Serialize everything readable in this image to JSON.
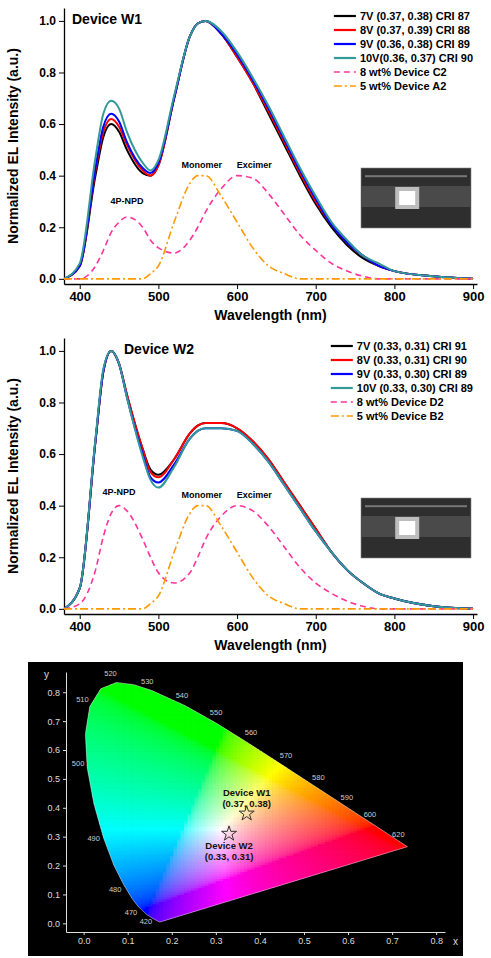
{
  "chart_data": [
    {
      "type": "line",
      "title": "Device W1",
      "xlabel": "Wavelength (nm)",
      "ylabel": "Normalized EL Intensity (a.u.)",
      "xlim": [
        380,
        905
      ],
      "ylim": [
        -0.02,
        1.05
      ],
      "xticks": [
        400,
        500,
        600,
        700,
        800,
        900
      ],
      "yticks": [
        {
          "value": 0,
          "label": "0.0"
        },
        0.2,
        0.4,
        0.6,
        0.8,
        {
          "value": 1,
          "label": "1.0"
        }
      ],
      "legend": "upper right",
      "x": [
        380,
        400,
        420,
        430,
        440,
        450,
        460,
        480,
        490,
        500,
        520,
        540,
        550,
        560,
        580,
        600,
        620,
        640,
        660,
        680,
        700,
        720,
        740,
        760,
        780,
        800,
        850,
        900
      ],
      "series": [
        {
          "name": "7V (0.37, 0.38) CRI 87",
          "color": "#000000",
          "line_style": "solid",
          "values": [
            0,
            0.05,
            0.4,
            0.55,
            0.6,
            0.57,
            0.5,
            0.41,
            0.4,
            0.44,
            0.7,
            0.94,
            0.99,
            1.0,
            0.95,
            0.86,
            0.76,
            0.64,
            0.52,
            0.4,
            0.29,
            0.2,
            0.13,
            0.08,
            0.05,
            0.03,
            0.01,
            0
          ]
        },
        {
          "name": "8V (0.37, 0.39) CRI 88",
          "color": "#ff0000",
          "line_style": "solid",
          "values": [
            0,
            0.05,
            0.42,
            0.57,
            0.62,
            0.59,
            0.52,
            0.42,
            0.4,
            0.44,
            0.7,
            0.94,
            0.99,
            1.0,
            0.95,
            0.86,
            0.76,
            0.65,
            0.53,
            0.41,
            0.3,
            0.21,
            0.14,
            0.09,
            0.05,
            0.03,
            0.01,
            0
          ]
        },
        {
          "name": "9V (0.36, 0.38) CRI 89",
          "color": "#0000ff",
          "line_style": "solid",
          "values": [
            0,
            0.05,
            0.43,
            0.59,
            0.64,
            0.61,
            0.53,
            0.43,
            0.41,
            0.45,
            0.7,
            0.94,
            0.99,
            1.0,
            0.95,
            0.87,
            0.77,
            0.66,
            0.54,
            0.42,
            0.31,
            0.21,
            0.14,
            0.09,
            0.05,
            0.03,
            0.01,
            0
          ]
        },
        {
          "name": "10V(0.36, 0.37) CRI 90",
          "color": "#339999",
          "line_style": "solid",
          "values": [
            0,
            0.06,
            0.47,
            0.64,
            0.69,
            0.66,
            0.57,
            0.45,
            0.42,
            0.46,
            0.71,
            0.94,
            0.99,
            1.0,
            0.96,
            0.88,
            0.78,
            0.67,
            0.55,
            0.43,
            0.32,
            0.22,
            0.15,
            0.09,
            0.06,
            0.03,
            0.01,
            0
          ]
        },
        {
          "name": "8 wt% Device C2",
          "color": "#ff3399",
          "line_style": "dash",
          "values": [
            0,
            0,
            0.05,
            0.11,
            0.18,
            0.22,
            0.24,
            0.2,
            0.15,
            0.12,
            0.1,
            0.15,
            0.2,
            0.26,
            0.35,
            0.4,
            0.39,
            0.33,
            0.25,
            0.17,
            0.11,
            0.06,
            0.03,
            0.01,
            0,
            0,
            0,
            0
          ]
        },
        {
          "name": "5 wt% Device A2",
          "color": "#ff9900",
          "line_style": "dashdot",
          "values": [
            0,
            0,
            0,
            0,
            0,
            0,
            0,
            0,
            0.02,
            0.05,
            0.22,
            0.37,
            0.4,
            0.4,
            0.32,
            0.22,
            0.12,
            0.05,
            0.02,
            0,
            0,
            0,
            0,
            0,
            0,
            0,
            0,
            0
          ]
        }
      ],
      "annotations": [
        {
          "text": "4P-NPD",
          "x": 460,
          "y": 0.29
        },
        {
          "text": "Monomer",
          "x": 555,
          "y": 0.43
        },
        {
          "text": "Excimer",
          "x": 622,
          "y": 0.43
        }
      ]
    },
    {
      "type": "line",
      "title": "Device W2",
      "xlabel": "Wavelength (nm)",
      "ylabel": "Normalized EL Intensity (a.u.)",
      "xlim": [
        380,
        905
      ],
      "ylim": [
        -0.02,
        1.05
      ],
      "xticks": [
        400,
        500,
        600,
        700,
        800,
        900
      ],
      "yticks": [
        {
          "value": 0,
          "label": "0.0"
        },
        0.2,
        0.4,
        0.6,
        0.8,
        {
          "value": 1,
          "label": "1.0"
        }
      ],
      "legend": "upper right",
      "x": [
        380,
        400,
        420,
        430,
        440,
        450,
        460,
        480,
        490,
        500,
        520,
        540,
        550,
        560,
        580,
        600,
        620,
        640,
        660,
        680,
        700,
        720,
        740,
        760,
        780,
        800,
        850,
        900
      ],
      "series": [
        {
          "name": "7V (0.33, 0.31) CRI 91",
          "color": "#000000",
          "line_style": "solid",
          "values": [
            0,
            0.08,
            0.65,
            0.92,
            1.0,
            0.95,
            0.83,
            0.62,
            0.54,
            0.52,
            0.58,
            0.68,
            0.71,
            0.72,
            0.72,
            0.7,
            0.65,
            0.58,
            0.49,
            0.4,
            0.31,
            0.22,
            0.15,
            0.1,
            0.06,
            0.04,
            0.01,
            0
          ]
        },
        {
          "name": "8V (0.33, 0.31) CRI 90",
          "color": "#ff0000",
          "line_style": "solid",
          "values": [
            0,
            0.08,
            0.65,
            0.92,
            1.0,
            0.95,
            0.83,
            0.62,
            0.53,
            0.51,
            0.58,
            0.68,
            0.71,
            0.72,
            0.72,
            0.7,
            0.65,
            0.58,
            0.49,
            0.4,
            0.31,
            0.22,
            0.15,
            0.1,
            0.06,
            0.04,
            0.01,
            0
          ]
        },
        {
          "name": "9V (0.33, 0.30) CRI 89",
          "color": "#0000ff",
          "line_style": "solid",
          "values": [
            0,
            0.08,
            0.65,
            0.92,
            1.0,
            0.95,
            0.82,
            0.6,
            0.51,
            0.49,
            0.56,
            0.66,
            0.69,
            0.7,
            0.7,
            0.69,
            0.64,
            0.57,
            0.48,
            0.39,
            0.3,
            0.22,
            0.15,
            0.1,
            0.06,
            0.04,
            0.01,
            0
          ]
        },
        {
          "name": "10V (0.33, 0.30) CRI 89",
          "color": "#339999",
          "line_style": "solid",
          "values": [
            0,
            0.08,
            0.66,
            0.93,
            1.0,
            0.95,
            0.82,
            0.59,
            0.5,
            0.47,
            0.55,
            0.66,
            0.69,
            0.7,
            0.7,
            0.69,
            0.64,
            0.57,
            0.48,
            0.39,
            0.3,
            0.22,
            0.15,
            0.1,
            0.06,
            0.04,
            0.01,
            0
          ]
        },
        {
          "name": "8 wt% Device D2",
          "color": "#ff3399",
          "line_style": "dash",
          "values": [
            0,
            0.02,
            0.15,
            0.28,
            0.37,
            0.4,
            0.38,
            0.27,
            0.2,
            0.14,
            0.1,
            0.14,
            0.2,
            0.27,
            0.36,
            0.4,
            0.38,
            0.32,
            0.24,
            0.16,
            0.1,
            0.06,
            0.03,
            0.01,
            0,
            0,
            0,
            0
          ]
        },
        {
          "name": "5 wt% Device B2",
          "color": "#ff9900",
          "line_style": "dashdot",
          "values": [
            0,
            0,
            0,
            0,
            0,
            0,
            0,
            0,
            0.02,
            0.05,
            0.22,
            0.37,
            0.4,
            0.4,
            0.32,
            0.22,
            0.12,
            0.05,
            0.02,
            0,
            0,
            0,
            0,
            0,
            0,
            0,
            0,
            0
          ]
        }
      ],
      "annotations": [
        {
          "text": "4P-NPD",
          "x": 450,
          "y": 0.44
        },
        {
          "text": "Monomer",
          "x": 555,
          "y": 0.43
        },
        {
          "text": "Excimer",
          "x": 622,
          "y": 0.43
        }
      ]
    },
    {
      "type": "chromaticity",
      "xlabel": "x",
      "ylabel": "y",
      "xlim": [
        -0.04,
        0.82
      ],
      "ylim": [
        -0.03,
        0.87
      ],
      "xticks": [
        {
          "value": 0,
          "label": "0.0"
        },
        0.1,
        0.2,
        0.3,
        0.4,
        0.5,
        0.6,
        0.7,
        0.8
      ],
      "yticks": [
        {
          "value": 0,
          "label": "0.0"
        },
        0.1,
        0.2,
        0.3,
        0.4,
        0.5,
        0.6,
        0.7,
        0.8
      ],
      "locus": {
        "wavelength": [
          380,
          420,
          440,
          450,
          460,
          470,
          475,
          480,
          485,
          490,
          495,
          500,
          505,
          510,
          515,
          520,
          525,
          530,
          540,
          550,
          560,
          570,
          580,
          590,
          600,
          610,
          620,
          630,
          640,
          660,
          700
        ],
        "x": [
          0.1741,
          0.1714,
          0.1644,
          0.1566,
          0.144,
          0.1241,
          0.1096,
          0.0913,
          0.0687,
          0.0454,
          0.0235,
          0.0082,
          0.0039,
          0.0139,
          0.0389,
          0.0743,
          0.1142,
          0.1547,
          0.2296,
          0.3016,
          0.3731,
          0.4441,
          0.5125,
          0.5752,
          0.627,
          0.6658,
          0.6915,
          0.7079,
          0.719,
          0.73,
          0.7347
        ],
        "y": [
          0.005,
          0.0051,
          0.0109,
          0.0177,
          0.0297,
          0.0578,
          0.0868,
          0.1327,
          0.2007,
          0.295,
          0.4127,
          0.5384,
          0.6548,
          0.7502,
          0.812,
          0.8338,
          0.8262,
          0.8059,
          0.7543,
          0.6923,
          0.6245,
          0.5547,
          0.4866,
          0.4242,
          0.3725,
          0.334,
          0.3083,
          0.292,
          0.2809,
          0.27,
          0.2653
        ]
      },
      "locus_labels": [
        420,
        470,
        480,
        490,
        500,
        510,
        520,
        530,
        540,
        550,
        560,
        570,
        580,
        590,
        600,
        620
      ],
      "points": [
        {
          "name": "Device W1",
          "label": "(0.37, 0.38)",
          "x": 0.37,
          "y": 0.38,
          "marker": "star"
        },
        {
          "name": "Device W2",
          "label": "(0.33, 0.31)",
          "x": 0.33,
          "y": 0.31,
          "marker": "star"
        }
      ]
    }
  ]
}
